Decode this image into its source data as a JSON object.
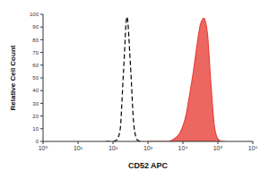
{
  "chart_data": {
    "type": "line",
    "xlabel": "CD52 APC",
    "ylabel": "Relative Cell Count",
    "x": [
      63,
      79,
      100,
      126,
      158,
      200,
      251,
      316,
      398,
      501,
      631,
      794,
      1000,
      1259,
      1585,
      1995,
      2512,
      3162,
      3981,
      5012,
      6310,
      7943,
      10000,
      12589,
      15849,
      19953,
      25119,
      31623,
      39811,
      50119,
      63096,
      79433,
      100000,
      125893,
      158489
    ],
    "series": [
      {
        "type": "line",
        "color": "#000000",
        "line_style": "dashed",
        "values": [
          0,
          0,
          0,
          1,
          8,
          55,
          98,
          60,
          12,
          1,
          0,
          null,
          null,
          null,
          null,
          null,
          null,
          null,
          null,
          null,
          null,
          null,
          null,
          null,
          null,
          null,
          null,
          null,
          null,
          null,
          null,
          null,
          null,
          null,
          null
        ]
      },
      {
        "type": "area",
        "color": "#e8413a",
        "line_style": "solid",
        "values": [
          null,
          null,
          null,
          null,
          null,
          null,
          null,
          null,
          null,
          null,
          null,
          null,
          0,
          0,
          0,
          0,
          0,
          0,
          0,
          1,
          3,
          6,
          12,
          22,
          38,
          55,
          75,
          92,
          97,
          85,
          45,
          12,
          2,
          0,
          0
        ]
      }
    ],
    "log": "x",
    "xlim": [
      1,
      1000000
    ],
    "xticks": [
      {
        "value": 1,
        "label": "10⁰"
      },
      {
        "value": 10,
        "label": "10¹"
      },
      {
        "value": 100,
        "label": "10²"
      },
      {
        "value": 1000,
        "label": "10³"
      },
      {
        "value": 10000,
        "label": "10⁴"
      },
      {
        "value": 100000,
        "label": "10⁵"
      },
      {
        "value": 1000000,
        "label": "10⁶"
      }
    ],
    "ylim": [
      0,
      100
    ],
    "yticks": [
      0,
      10,
      20,
      30,
      40,
      50,
      60,
      70,
      80,
      90,
      100
    ]
  }
}
